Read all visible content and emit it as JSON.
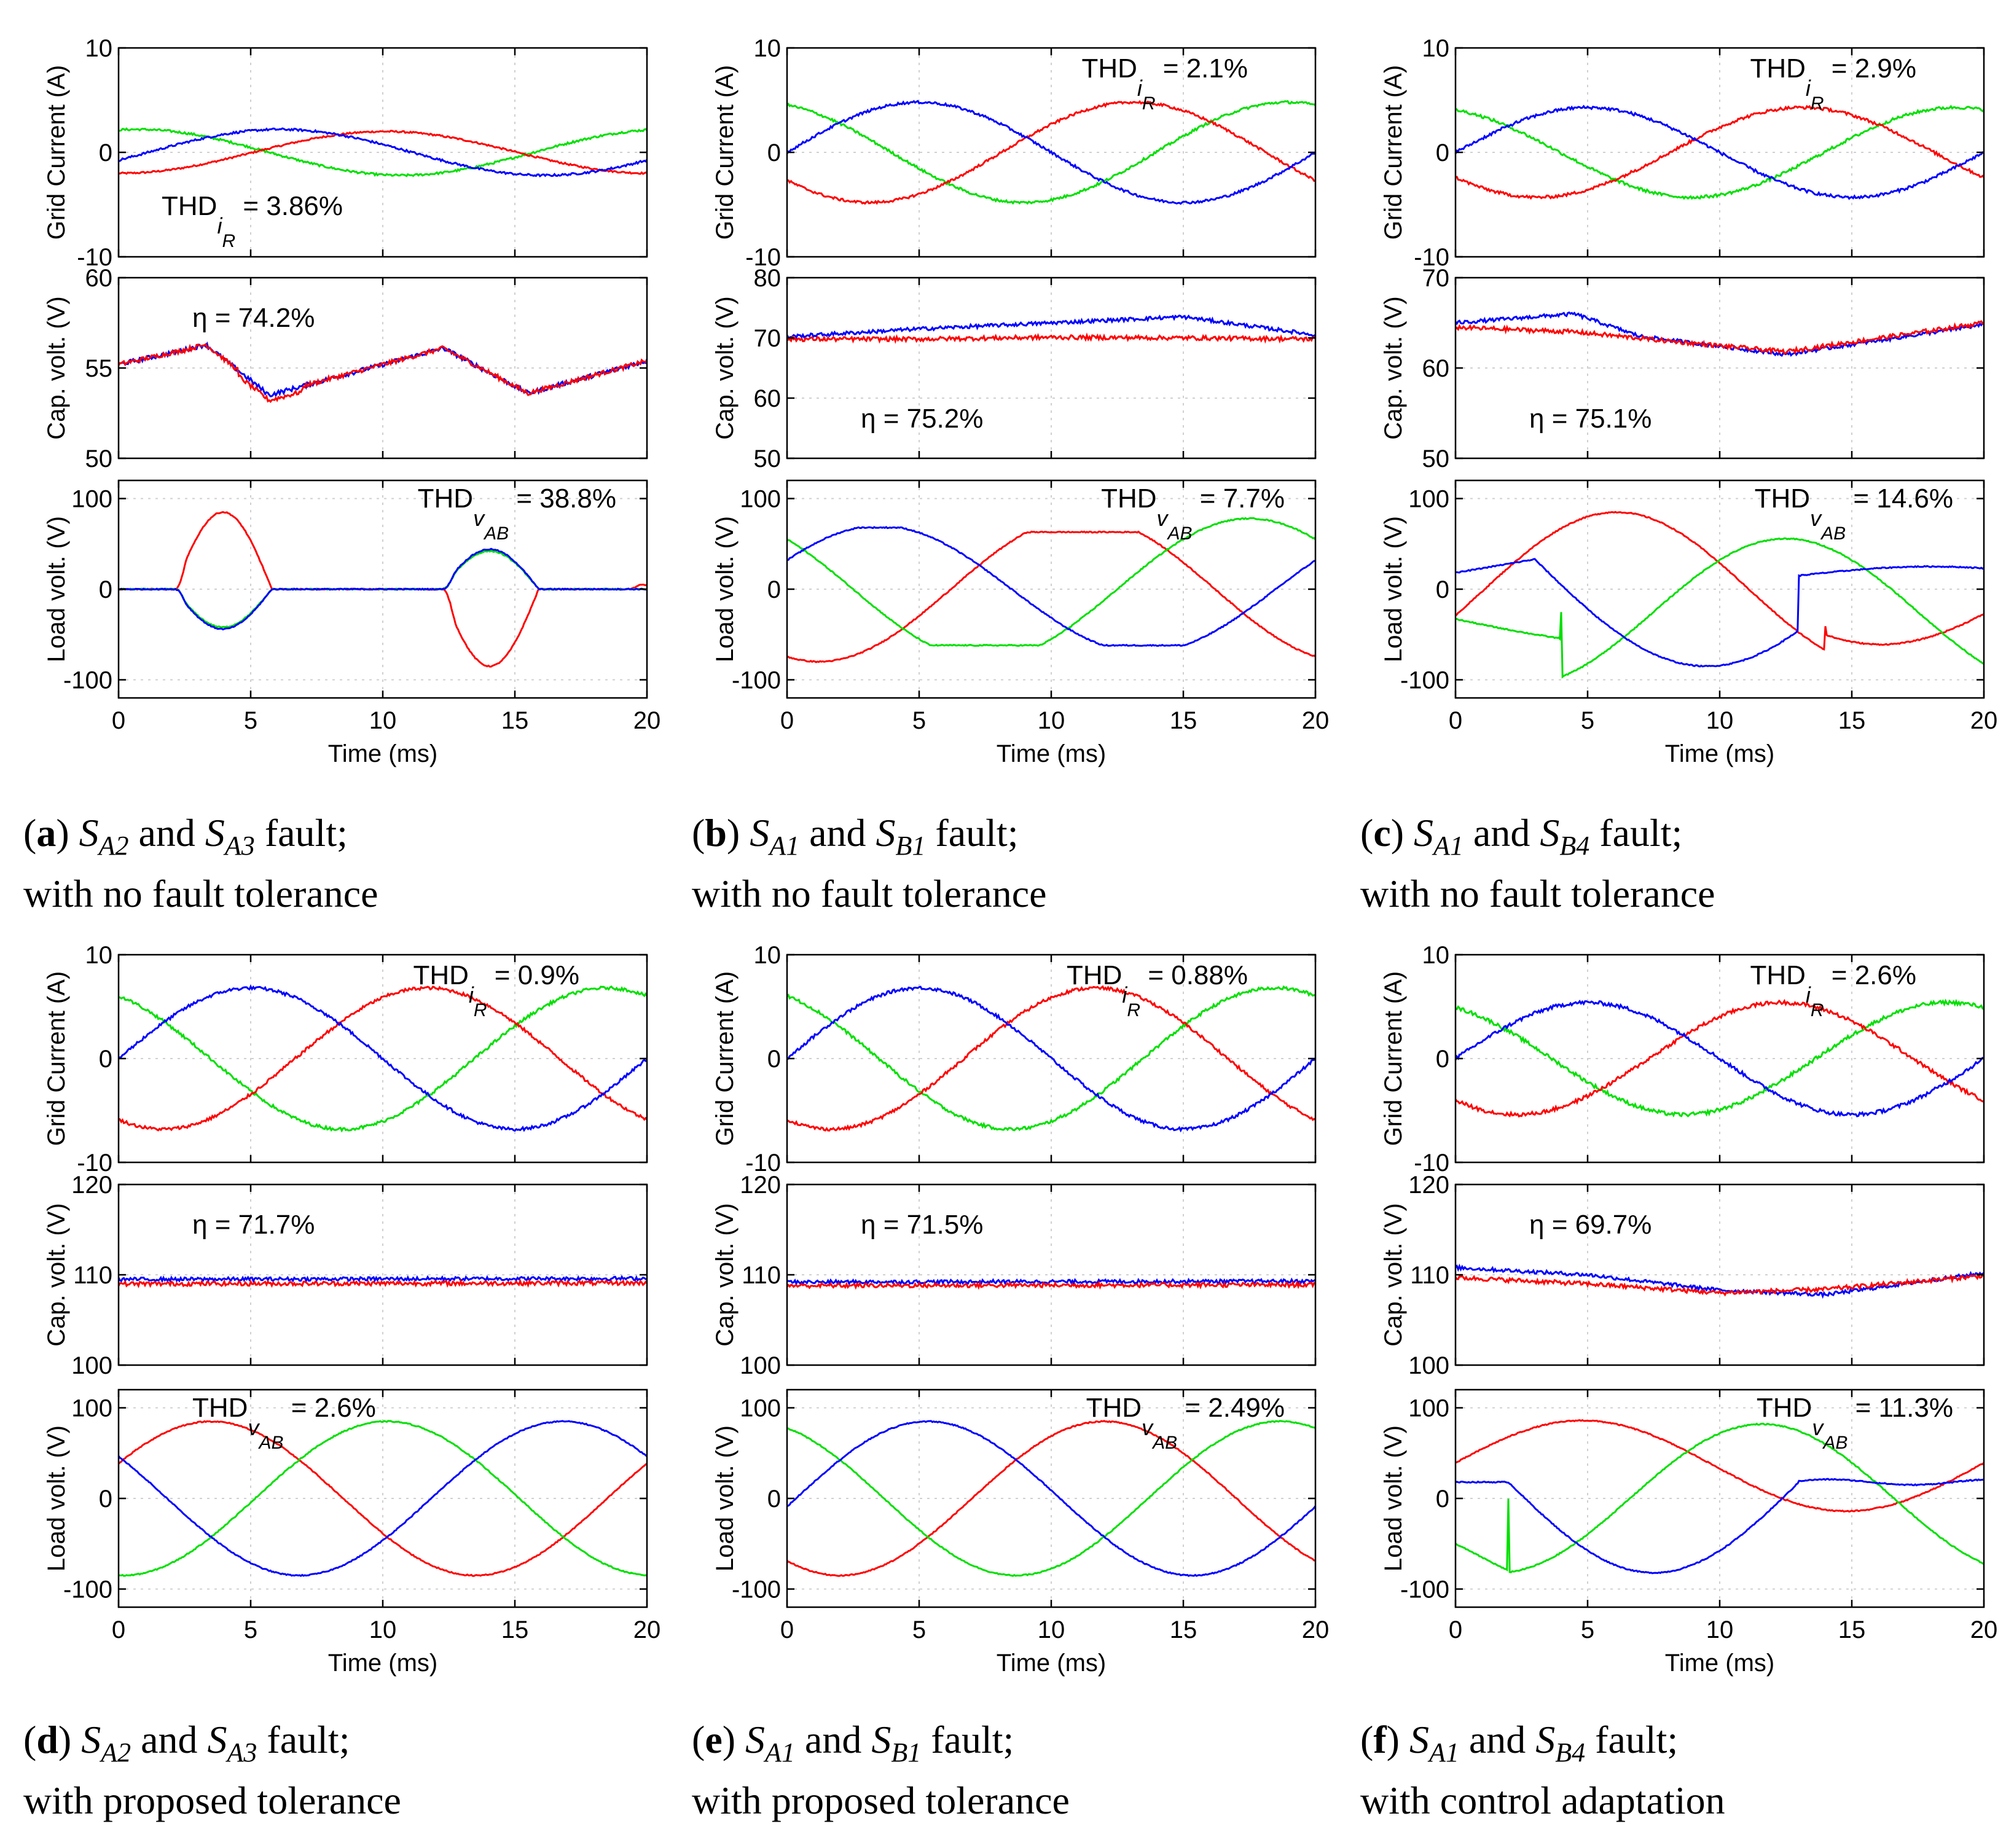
{
  "colors": {
    "red": "#ff0000",
    "green": "#00e000",
    "blue": "#0000ff",
    "grid": "#d0d0d0",
    "axis": "#000000"
  },
  "panels": [
    {
      "letter": "a",
      "caption": {
        "sw1": "A2",
        "sw2": "A3",
        "line1_suffix": "fault;",
        "line2": "with no fault tolerance"
      },
      "grid_current": {
        "ylabel": "Grid Current (A)",
        "ylim": [
          -10,
          10
        ],
        "yticks": [
          "10",
          "0",
          "-10"
        ],
        "amps": {
          "red": 2.0,
          "green": 2.2,
          "blue": 2.2
        },
        "annotation": {
          "prefix": "THD",
          "sub": "i",
          "subsub": "R",
          "suffix": " = 3.86%",
          "pos": "bottom-left"
        }
      },
      "cap_voltage": {
        "ylabel": "Cap. volt. (V)",
        "ylim": [
          50,
          60
        ],
        "yticks": [
          "60",
          "55",
          "50"
        ],
        "points": [
          [
            0,
            55.2
          ],
          [
            2.5,
            56.0
          ],
          [
            3.3,
            56.3
          ],
          [
            5.7,
            53.5
          ],
          [
            12.3,
            56.1
          ],
          [
            15.5,
            53.6
          ],
          [
            20,
            55.4
          ]
        ],
        "annotation": {
          "text": "η = 74.2%",
          "pos": "top-left"
        }
      },
      "load_voltage": {
        "ylabel": "Load volt. (V)",
        "ylim": [
          -120,
          120
        ],
        "yticks": [
          "100",
          "0",
          "-100"
        ],
        "xlabel": "Time (ms)",
        "xticks": [
          "0",
          "5",
          "10",
          "15",
          "20"
        ],
        "xlim": [
          0,
          20
        ],
        "annotation": {
          "prefix": "THD",
          "sub": "v",
          "subsub": "AB",
          "suffix": " = 38.8%",
          "pos": "top-right"
        }
      }
    },
    {
      "letter": "b",
      "caption": {
        "sw1": "A1",
        "sw2": "B1",
        "line1_suffix": "fault;",
        "line2": "with no fault tolerance"
      },
      "grid_current": {
        "ylabel": "Grid Current (A)",
        "ylim": [
          -10,
          10
        ],
        "yticks": [
          "10",
          "0",
          "-10"
        ],
        "amps": {
          "red": 4.8,
          "green": 4.8,
          "blue": 4.8
        },
        "annotation": {
          "prefix": "THD",
          "sub": "i",
          "subsub": "R",
          "suffix": " = 2.1%",
          "pos": "top-right"
        }
      },
      "cap_voltage": {
        "ylabel": "Cap. volt. (V)",
        "ylim": [
          50,
          80
        ],
        "yticks": [
          "80",
          "70",
          "60",
          "50"
        ],
        "blue_points": [
          [
            0,
            70.2
          ],
          [
            5,
            71.5
          ],
          [
            10,
            72.5
          ],
          [
            15,
            73.5
          ],
          [
            20,
            70.5
          ]
        ],
        "red_points": [
          [
            0,
            69.8
          ],
          [
            5,
            69.8
          ],
          [
            10,
            70.1
          ],
          [
            15,
            70.0
          ],
          [
            20,
            69.8
          ]
        ],
        "annotation": {
          "text": "η = 75.2%",
          "pos": "bottom-left"
        }
      },
      "load_voltage": {
        "ylabel": "Load volt. (V)",
        "ylim": [
          -120,
          120
        ],
        "yticks": [
          "100",
          "0",
          "-100"
        ],
        "xlabel": "Time (ms)",
        "xticks": [
          "0",
          "5",
          "10",
          "15",
          "20"
        ],
        "xlim": [
          0,
          20
        ],
        "annotation": {
          "prefix": "THD",
          "sub": "v",
          "subsub": "AB",
          "suffix": " = 7.7%",
          "pos": "top-right"
        }
      }
    },
    {
      "letter": "c",
      "caption": {
        "sw1": "A1",
        "sw2": "B4",
        "line1_suffix": "fault;",
        "line2": "with no fault tolerance"
      },
      "grid_current": {
        "ylabel": "Grid Current (A)",
        "ylim": [
          -10,
          10
        ],
        "yticks": [
          "10",
          "0",
          "-10"
        ],
        "amps": {
          "red": 4.3,
          "green": 4.3,
          "blue": 4.3
        },
        "annotation": {
          "prefix": "THD",
          "sub": "i",
          "subsub": "R",
          "suffix": " = 2.9%",
          "pos": "top-right"
        }
      },
      "cap_voltage": {
        "ylabel": "Cap. volt. (V)",
        "ylim": [
          50,
          70
        ],
        "yticks": [
          "70",
          "60",
          "50"
        ],
        "blue_points": [
          [
            0,
            65.0
          ],
          [
            4.5,
            66.0
          ],
          [
            7,
            63.5
          ],
          [
            12.5,
            61.5
          ],
          [
            20,
            64.8
          ]
        ],
        "red_points": [
          [
            0,
            64.5
          ],
          [
            4.5,
            64.0
          ],
          [
            8,
            63.0
          ],
          [
            12.5,
            61.8
          ],
          [
            20,
            65.0
          ]
        ],
        "annotation": {
          "text": "η = 75.1%",
          "pos": "bottom-left"
        }
      },
      "load_voltage": {
        "ylabel": "Load volt. (V)",
        "ylim": [
          -120,
          120
        ],
        "yticks": [
          "100",
          "0",
          "-100"
        ],
        "xlabel": "Time (ms)",
        "xticks": [
          "0",
          "5",
          "10",
          "15",
          "20"
        ],
        "xlim": [
          0,
          20
        ],
        "annotation": {
          "prefix": "THD",
          "sub": "v",
          "subsub": "AB",
          "suffix": " = 14.6%",
          "pos": "top-right"
        }
      }
    },
    {
      "letter": "d",
      "caption": {
        "sw1": "A2",
        "sw2": "A3",
        "line1_suffix": "fault;",
        "line2": "with proposed tolerance"
      },
      "grid_current": {
        "ylabel": "Grid Current (A)",
        "ylim": [
          -10,
          10
        ],
        "yticks": [
          "10",
          "0",
          "-10"
        ],
        "amps": {
          "red": 6.8,
          "green": 6.8,
          "blue": 6.8
        },
        "annotation": {
          "prefix": "THD",
          "sub": "i",
          "subsub": "R",
          "suffix": " = 0.9%",
          "pos": "top-right"
        }
      },
      "cap_voltage": {
        "ylabel": "Cap. volt. (V)",
        "ylim": [
          100,
          120
        ],
        "yticks": [
          "120",
          "110",
          "100"
        ],
        "blue_points": [
          [
            0,
            109.5
          ],
          [
            20,
            109.6
          ]
        ],
        "red_points": [
          [
            0,
            109.0
          ],
          [
            20,
            109.1
          ]
        ],
        "annotation": {
          "text": "η = 71.7%",
          "pos": "top-left"
        }
      },
      "load_voltage": {
        "ylabel": "Load volt. (V)",
        "ylim": [
          -120,
          120
        ],
        "yticks": [
          "100",
          "0",
          "-100"
        ],
        "xlabel": "Time (ms)",
        "xticks": [
          "0",
          "5",
          "10",
          "15",
          "20"
        ],
        "xlim": [
          0,
          20
        ],
        "annotation": {
          "prefix": "THD",
          "sub": "v",
          "subsub": "AB",
          "suffix": " = 2.6%",
          "pos": "top-left"
        }
      }
    },
    {
      "letter": "e",
      "caption": {
        "sw1": "A1",
        "sw2": "B1",
        "line1_suffix": "fault;",
        "line2": "with proposed tolerance"
      },
      "grid_current": {
        "ylabel": "Grid Current (A)",
        "ylim": [
          -10,
          10
        ],
        "yticks": [
          "10",
          "0",
          "-10"
        ],
        "amps": {
          "red": 6.8,
          "green": 6.8,
          "blue": 6.8
        },
        "annotation": {
          "prefix": "THD",
          "sub": "i",
          "subsub": "R",
          "suffix": " = 0.88%",
          "pos": "top-right"
        }
      },
      "cap_voltage": {
        "ylabel": "Cap. volt. (V)",
        "ylim": [
          100,
          120
        ],
        "yticks": [
          "120",
          "110",
          "100"
        ],
        "blue_points": [
          [
            0,
            109.2
          ],
          [
            20,
            109.3
          ]
        ],
        "red_points": [
          [
            0,
            108.8
          ],
          [
            20,
            108.9
          ]
        ],
        "annotation": {
          "text": "η = 71.5%",
          "pos": "top-left"
        }
      },
      "load_voltage": {
        "ylabel": "Load volt. (V)",
        "ylim": [
          -120,
          120
        ],
        "yticks": [
          "100",
          "0",
          "-100"
        ],
        "xlabel": "Time (ms)",
        "xticks": [
          "0",
          "5",
          "10",
          "15",
          "20"
        ],
        "xlim": [
          0,
          20
        ],
        "annotation": {
          "prefix": "THD",
          "sub": "v",
          "subsub": "AB",
          "suffix": " = 2.49%",
          "pos": "top-right"
        }
      }
    },
    {
      "letter": "f",
      "caption": {
        "sw1": "A1",
        "sw2": "B4",
        "line1_suffix": "fault;",
        "line2": "with control adaptation"
      },
      "grid_current": {
        "ylabel": "Grid Current (A)",
        "ylim": [
          -10,
          10
        ],
        "yticks": [
          "10",
          "0",
          "-10"
        ],
        "amps": {
          "red": 5.4,
          "green": 5.4,
          "blue": 5.4
        },
        "annotation": {
          "prefix": "THD",
          "sub": "i",
          "subsub": "R",
          "suffix": " = 2.6%",
          "pos": "top-right"
        }
      },
      "cap_voltage": {
        "ylabel": "Cap. volt. (V)",
        "ylim": [
          100,
          120
        ],
        "yticks": [
          "120",
          "110",
          "100"
        ],
        "blue_points": [
          [
            0,
            110.8
          ],
          [
            5,
            110.0
          ],
          [
            10,
            108.3
          ],
          [
            14,
            107.8
          ],
          [
            20,
            110.2
          ]
        ],
        "red_points": [
          [
            0,
            109.7
          ],
          [
            5,
            109.0
          ],
          [
            10,
            108.0
          ],
          [
            14,
            108.4
          ],
          [
            20,
            109.9
          ]
        ],
        "annotation": {
          "text": "η = 69.7%",
          "pos": "top-left"
        }
      },
      "load_voltage": {
        "ylabel": "Load volt. (V)",
        "ylim": [
          -120,
          120
        ],
        "yticks": [
          "100",
          "0",
          "-100"
        ],
        "xlabel": "Time (ms)",
        "xticks": [
          "0",
          "5",
          "10",
          "15",
          "20"
        ],
        "xlim": [
          0,
          20
        ],
        "annotation": {
          "prefix": "THD",
          "sub": "v",
          "subsub": "AB",
          "suffix": " = 11.3%",
          "pos": "top-right"
        }
      }
    }
  ],
  "chart_data": [
    {
      "type": "line",
      "panel": "a",
      "subplots": [
        "Grid Current (A)",
        "Cap. volt. (V)",
        "Load volt. (V)"
      ],
      "xlabel": "Time (ms)",
      "xlim": [
        0,
        20
      ],
      "series": [
        {
          "name": "red"
        },
        {
          "name": "green"
        },
        {
          "name": "blue"
        }
      ],
      "annotations": [
        "THD_iR = 3.86%",
        "η = 74.2%",
        "THD_vAB = 38.8%"
      ]
    },
    {
      "type": "line",
      "panel": "b",
      "subplots": [
        "Grid Current (A)",
        "Cap. volt. (V)",
        "Load volt. (V)"
      ],
      "xlabel": "Time (ms)",
      "xlim": [
        0,
        20
      ],
      "series": [
        {
          "name": "red"
        },
        {
          "name": "green"
        },
        {
          "name": "blue"
        }
      ],
      "annotations": [
        "THD_iR = 2.1%",
        "η = 75.2%",
        "THD_vAB = 7.7%"
      ]
    },
    {
      "type": "line",
      "panel": "c",
      "subplots": [
        "Grid Current (A)",
        "Cap. volt. (V)",
        "Load volt. (V)"
      ],
      "xlabel": "Time (ms)",
      "xlim": [
        0,
        20
      ],
      "series": [
        {
          "name": "red"
        },
        {
          "name": "green"
        },
        {
          "name": "blue"
        }
      ],
      "annotations": [
        "THD_iR = 2.9%",
        "η = 75.1%",
        "THD_vAB = 14.6%"
      ]
    },
    {
      "type": "line",
      "panel": "d",
      "subplots": [
        "Grid Current (A)",
        "Cap. volt. (V)",
        "Load volt. (V)"
      ],
      "xlabel": "Time (ms)",
      "xlim": [
        0,
        20
      ],
      "series": [
        {
          "name": "red"
        },
        {
          "name": "green"
        },
        {
          "name": "blue"
        }
      ],
      "annotations": [
        "THD_iR = 0.9%",
        "η = 71.7%",
        "THD_vAB = 2.6%"
      ]
    },
    {
      "type": "line",
      "panel": "e",
      "subplots": [
        "Grid Current (A)",
        "Cap. volt. (V)",
        "Load volt. (V)"
      ],
      "xlabel": "Time (ms)",
      "xlim": [
        0,
        20
      ],
      "series": [
        {
          "name": "red"
        },
        {
          "name": "green"
        },
        {
          "name": "blue"
        }
      ],
      "annotations": [
        "THD_iR = 0.88%",
        "η = 71.5%",
        "THD_vAB = 2.49%"
      ]
    },
    {
      "type": "line",
      "panel": "f",
      "subplots": [
        "Grid Current (A)",
        "Cap. volt. (V)",
        "Load volt. (V)"
      ],
      "xlabel": "Time (ms)",
      "xlim": [
        0,
        20
      ],
      "series": [
        {
          "name": "red"
        },
        {
          "name": "green"
        },
        {
          "name": "blue"
        }
      ],
      "annotations": [
        "THD_iR = 2.6%",
        "η = 69.7%",
        "THD_vAB = 11.3%"
      ]
    }
  ]
}
